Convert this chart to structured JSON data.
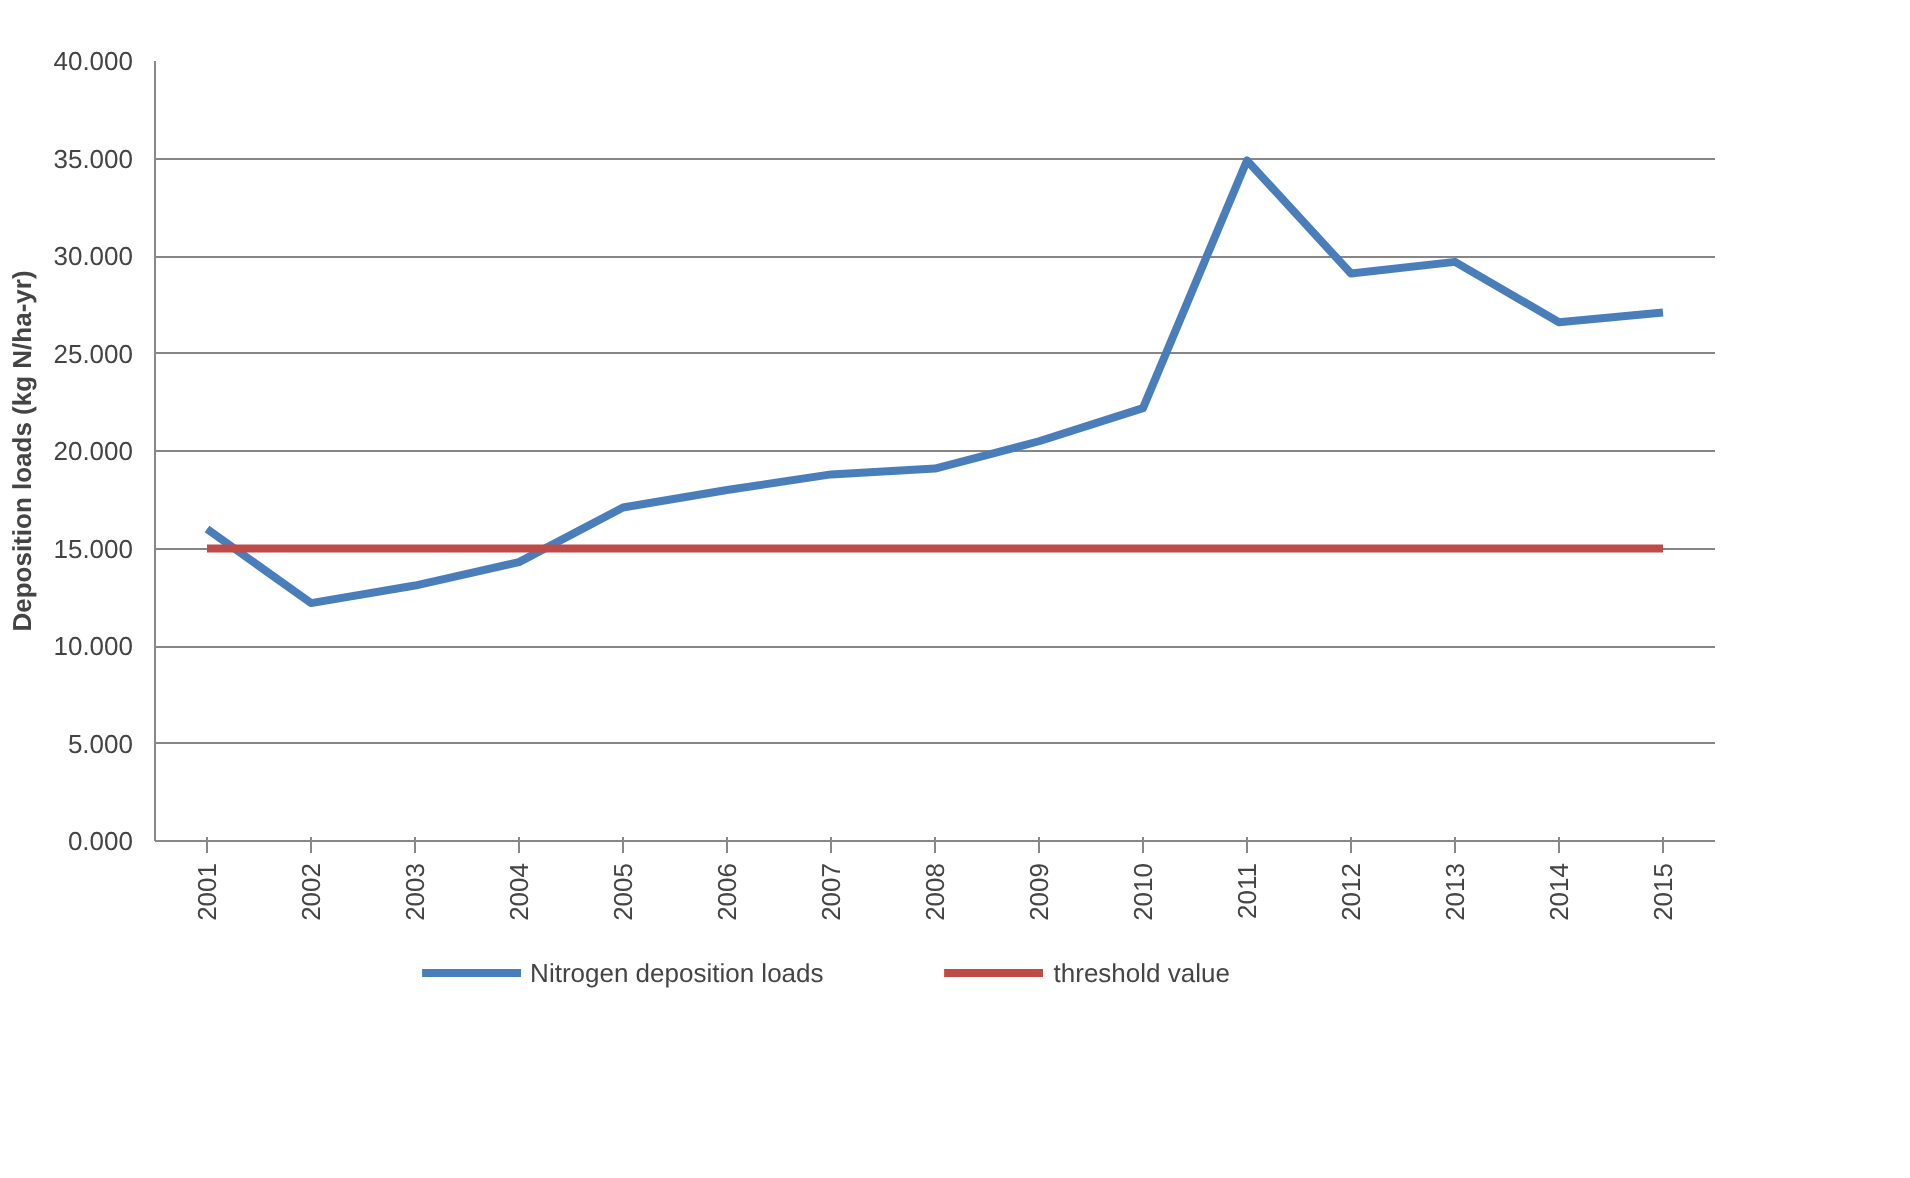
{
  "chart_data": {
    "type": "line",
    "ylabel": "Deposition loads (kg N/ha-yr)",
    "categories": [
      "2001",
      "2002",
      "2003",
      "2004",
      "2005",
      "2006",
      "2007",
      "2008",
      "2009",
      "2010",
      "2011",
      "2012",
      "2013",
      "2014",
      "2015"
    ],
    "series": [
      {
        "name": "Nitrogen deposition loads",
        "color": "#4a7ebb",
        "values": [
          16.0,
          12.2,
          13.1,
          14.3,
          17.1,
          18.0,
          18.8,
          19.1,
          20.5,
          22.2,
          34.9,
          29.1,
          29.7,
          26.6,
          27.1
        ]
      },
      {
        "name": "threshold value",
        "color": "#be4b48",
        "values": [
          15,
          15,
          15,
          15,
          15,
          15,
          15,
          15,
          15,
          15,
          15,
          15,
          15,
          15,
          15
        ]
      }
    ],
    "ylim": [
      0,
      40
    ],
    "yticks": [
      {
        "value": 0,
        "label": "0.000"
      },
      {
        "value": 5,
        "label": "5.000"
      },
      {
        "value": 10,
        "label": "10.000"
      },
      {
        "value": 15,
        "label": "15.000"
      },
      {
        "value": 20,
        "label": "20.000"
      },
      {
        "value": 25,
        "label": "25.000"
      },
      {
        "value": 30,
        "label": "30.000"
      },
      {
        "value": 35,
        "label": "35.000"
      },
      {
        "value": 40,
        "label": "40.000"
      }
    ],
    "grid": "y",
    "legend": "bottom",
    "marker": "none",
    "line_style": "solid"
  }
}
